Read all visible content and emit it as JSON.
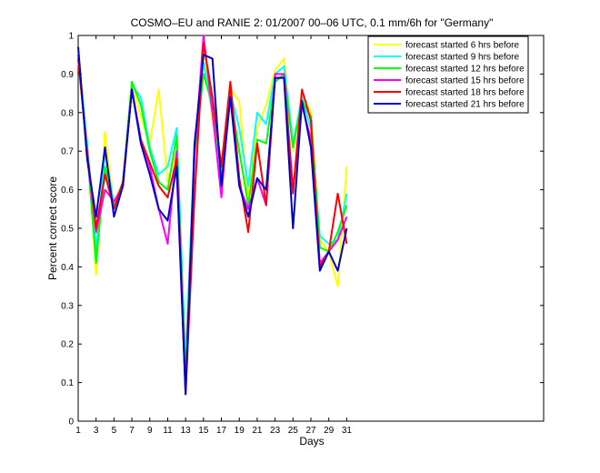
{
  "chart_data": {
    "type": "line",
    "title": "COSMO–EU and RANIE 2: 01/2007 00–06 UTC, 0.1 mm/6h for \"Germany\"",
    "xlabel": "Days",
    "ylabel": "Percent correct score",
    "xlim": [
      1,
      53
    ],
    "ylim": [
      0,
      1
    ],
    "xticks": [
      1,
      3,
      5,
      7,
      9,
      11,
      13,
      15,
      17,
      19,
      21,
      23,
      25,
      27,
      29,
      31
    ],
    "yticks": [
      0,
      0.1,
      0.2,
      0.3,
      0.4,
      0.5,
      0.6,
      0.7,
      0.8,
      0.9,
      1
    ],
    "ytick_labels": [
      "0",
      "0.1",
      "0.2",
      "0.3",
      "0.4",
      "0.5",
      "0.6",
      "0.7",
      "0.8",
      "0.9",
      "1"
    ],
    "legend_position": "top-right",
    "grid": false,
    "x": [
      1,
      2,
      3,
      4,
      5,
      6,
      7,
      8,
      9,
      10,
      11,
      12,
      13,
      14,
      15,
      16,
      17,
      18,
      19,
      20,
      21,
      22,
      23,
      24,
      25,
      26,
      27,
      28,
      29,
      30,
      31
    ],
    "series": [
      {
        "name": "forecast started 6 hrs before",
        "color": "#ffff00",
        "values": [
          0.96,
          0.73,
          0.38,
          0.75,
          0.55,
          0.62,
          0.88,
          0.79,
          0.72,
          0.86,
          0.62,
          0.7,
          0.17,
          0.7,
          0.97,
          0.78,
          0.67,
          0.86,
          0.83,
          0.57,
          0.76,
          0.82,
          0.91,
          0.94,
          0.7,
          0.85,
          0.8,
          0.47,
          0.44,
          0.35,
          0.66
        ]
      },
      {
        "name": "forecast started 9 hrs before",
        "color": "#00ffff",
        "values": [
          0.95,
          0.72,
          0.44,
          0.7,
          0.56,
          0.62,
          0.87,
          0.84,
          0.71,
          0.64,
          0.66,
          0.76,
          0.15,
          0.72,
          0.93,
          0.8,
          0.65,
          0.85,
          0.76,
          0.61,
          0.8,
          0.77,
          0.9,
          0.92,
          0.72,
          0.84,
          0.76,
          0.48,
          0.46,
          0.47,
          0.59
        ]
      },
      {
        "name": "forecast started 12 hrs before",
        "color": "#00ff00",
        "values": [
          0.94,
          0.7,
          0.41,
          0.66,
          0.56,
          0.62,
          0.88,
          0.82,
          0.7,
          0.62,
          0.6,
          0.74,
          0.12,
          0.69,
          0.9,
          0.82,
          0.64,
          0.84,
          0.7,
          0.56,
          0.73,
          0.72,
          0.88,
          0.9,
          0.71,
          0.83,
          0.79,
          0.45,
          0.44,
          0.49,
          0.56
        ]
      },
      {
        "name": "forecast started 15 hrs before",
        "color": "#ff00ff",
        "values": [
          0.95,
          0.69,
          0.49,
          0.6,
          0.57,
          0.61,
          0.86,
          0.73,
          0.66,
          0.55,
          0.46,
          0.7,
          0.08,
          0.69,
          1.0,
          0.8,
          0.58,
          0.87,
          0.61,
          0.55,
          0.63,
          0.56,
          0.9,
          0.9,
          0.6,
          0.82,
          0.73,
          0.41,
          0.44,
          0.47,
          0.53
        ]
      },
      {
        "name": "forecast started 18 hrs before",
        "color": "#ff0000",
        "values": [
          0.94,
          0.7,
          0.5,
          0.64,
          0.55,
          0.62,
          0.86,
          0.73,
          0.67,
          0.61,
          0.58,
          0.68,
          0.07,
          0.58,
          0.98,
          0.84,
          0.66,
          0.88,
          0.63,
          0.49,
          0.72,
          0.56,
          0.89,
          0.89,
          0.59,
          0.86,
          0.78,
          0.4,
          0.44,
          0.59,
          0.46
        ]
      },
      {
        "name": "forecast started 21 hrs before",
        "color": "#0000cc",
        "values": [
          0.97,
          0.68,
          0.53,
          0.71,
          0.53,
          0.61,
          0.86,
          0.72,
          0.64,
          0.55,
          0.52,
          0.66,
          0.07,
          0.72,
          0.95,
          0.94,
          0.61,
          0.84,
          0.61,
          0.53,
          0.63,
          0.6,
          0.89,
          0.89,
          0.5,
          0.83,
          0.71,
          0.39,
          0.44,
          0.39,
          0.5
        ]
      }
    ]
  }
}
